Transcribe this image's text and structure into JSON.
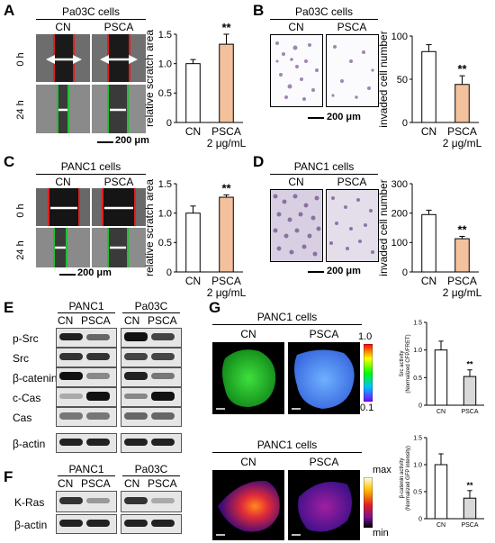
{
  "panelA": {
    "label": "A",
    "cell": "Pa03C cells",
    "cn": "CN",
    "psca": "PSCA",
    "t0": "0 h",
    "t24": "24 h",
    "scale": "200 μm",
    "chart_data": {
      "type": "bar",
      "categories": [
        "CN",
        "PSCA\n2 μg/mL"
      ],
      "values": [
        1.0,
        1.33
      ],
      "errors": [
        0.07,
        0.17
      ],
      "ylabel": "relative scratch area",
      "ylim": [
        0,
        1.5
      ],
      "yticks": [
        "0",
        "0.5",
        "1.0",
        "1.5"
      ],
      "sig": "**",
      "colors": [
        "#ffffff",
        "#f4c19d"
      ]
    }
  },
  "panelB": {
    "label": "B",
    "cell": "Pa03C cells",
    "cn": "CN",
    "psca": "PSCA",
    "scale": "200 μm",
    "chart_data": {
      "type": "bar",
      "categories": [
        "CN",
        "PSCA\n2 μg/mL"
      ],
      "values": [
        82,
        44
      ],
      "errors": [
        8,
        10
      ],
      "ylabel": "invaded cell number",
      "ylim": [
        0,
        100
      ],
      "yticks": [
        "0",
        "50",
        "100"
      ],
      "sig": "**",
      "colors": [
        "#ffffff",
        "#f4c19d"
      ]
    }
  },
  "panelC": {
    "label": "C",
    "cell": "PANC1 cells",
    "cn": "CN",
    "psca": "PSCA",
    "t0": "0 h",
    "t24": "24 h",
    "scale": "200 μm",
    "chart_data": {
      "type": "bar",
      "categories": [
        "CN",
        "PSCA\n2 μg/mL"
      ],
      "values": [
        1.0,
        1.27
      ],
      "errors": [
        0.12,
        0.04
      ],
      "ylabel": "relative scratch area",
      "ylim": [
        0,
        1.5
      ],
      "yticks": [
        "0",
        "0.5",
        "1.0",
        "1.5"
      ],
      "sig": "**",
      "colors": [
        "#ffffff",
        "#f4c19d"
      ]
    }
  },
  "panelD": {
    "label": "D",
    "cell": "PANC1 cells",
    "cn": "CN",
    "psca": "PSCA",
    "scale": "200 μm",
    "chart_data": {
      "type": "bar",
      "categories": [
        "CN",
        "PSCA\n2 μg/mL"
      ],
      "values": [
        195,
        113
      ],
      "errors": [
        15,
        8
      ],
      "ylabel": "invaded cell number",
      "ylim": [
        0,
        300
      ],
      "yticks": [
        "0",
        "100",
        "200",
        "300"
      ],
      "sig": "**",
      "colors": [
        "#ffffff",
        "#f4c19d"
      ]
    }
  },
  "panelE": {
    "label": "E",
    "groups": [
      "PANC1",
      "Pa03C"
    ],
    "lanes": [
      "CN",
      "PSCA",
      "CN",
      "PSCA"
    ],
    "rows": [
      "p-Src",
      "Src",
      "β-catenin",
      "c-Cas",
      "Cas",
      "β-actin"
    ]
  },
  "panelF": {
    "label": "F",
    "groups": [
      "PANC1",
      "Pa03C"
    ],
    "lanes": [
      "CN",
      "PSCA",
      "CN",
      "PSCA"
    ],
    "rows": [
      "K-Ras",
      "β-actin"
    ]
  },
  "panelG": {
    "label": "G",
    "cell1": "PANC1 cells",
    "cell2": "PANC1 cells",
    "cn": "CN",
    "psca": "PSCA",
    "cbar1": {
      "top": "1.0",
      "bottom": "0.1"
    },
    "cbar2": {
      "top": "max",
      "bottom": "min"
    },
    "chart_top": {
      "type": "bar",
      "categories": [
        "CN",
        "PSCA"
      ],
      "values": [
        1.0,
        0.52
      ],
      "errors": [
        0.16,
        0.12
      ],
      "ylabel": "Src activity",
      "ylabel2": "(Normalized CFP/FRET)",
      "ylim": [
        0,
        1.5
      ],
      "yticks": [
        "0",
        "0.5",
        "1.0",
        "1.5"
      ],
      "sig": "**",
      "colors": [
        "#ffffff",
        "#d9d9d9"
      ]
    },
    "chart_bottom": {
      "type": "bar",
      "categories": [
        "CN",
        "PSCA"
      ],
      "values": [
        1.0,
        0.38
      ],
      "errors": [
        0.2,
        0.14
      ],
      "ylabel": "β-catenin activity",
      "ylabel2": "(Normalized GFP intensity)",
      "ylim": [
        0,
        1.5
      ],
      "yticks": [
        "0",
        "0.5",
        "1.0",
        "1.5"
      ],
      "sig": "**",
      "colors": [
        "#ffffff",
        "#d9d9d9"
      ]
    }
  }
}
